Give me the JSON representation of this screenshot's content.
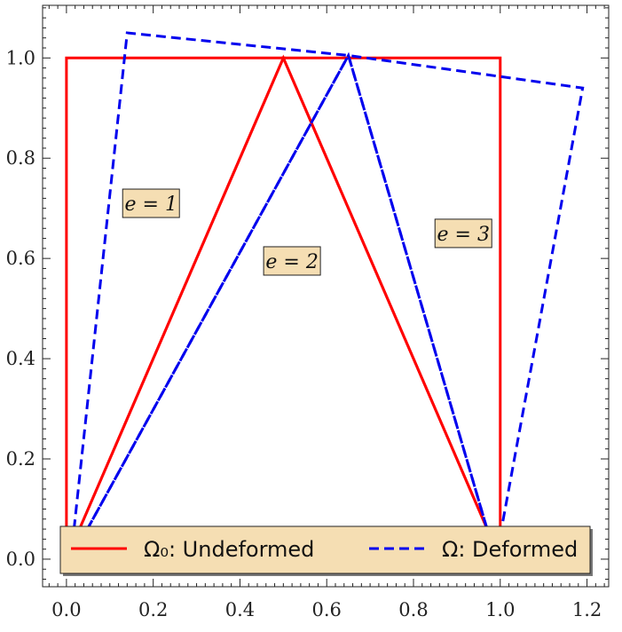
{
  "chart_data": {
    "type": "line",
    "title": "",
    "xlabel": "",
    "ylabel": "",
    "xlim": [
      -0.055,
      1.25
    ],
    "ylim": [
      -0.055,
      1.105
    ],
    "grid": false,
    "legend_placement": "bottom",
    "x_ticks": [
      "0.0",
      "0.2",
      "0.4",
      "0.6",
      "0.8",
      "1.0",
      "1.2"
    ],
    "y_ticks": [
      "0.0",
      "0.2",
      "0.4",
      "0.6",
      "0.8",
      "1.0"
    ],
    "series": [
      {
        "name": "Undeformed",
        "legend_label": "Ω₀: Undeformed",
        "color": "#ff0000",
        "style": "solid",
        "polygons": [
          [
            [
              0,
              0
            ],
            [
              0,
              1
            ],
            [
              0.5,
              1
            ],
            [
              0,
              0
            ]
          ],
          [
            [
              0,
              0
            ],
            [
              0.5,
              1
            ],
            [
              1,
              0
            ],
            [
              0,
              0
            ]
          ],
          [
            [
              1,
              0
            ],
            [
              0.5,
              1
            ],
            [
              1,
              1
            ],
            [
              1,
              0
            ]
          ]
        ]
      },
      {
        "name": "Deformed",
        "legend_label": "Ω: Deformed",
        "color": "#0000ee",
        "style": "dashed",
        "polygons": [
          [
            [
              0.01,
              0
            ],
            [
              0.14,
              1.05
            ],
            [
              0.65,
              1.005
            ],
            [
              0.01,
              0
            ]
          ],
          [
            [
              0.01,
              0
            ],
            [
              0.65,
              1.005
            ],
            [
              0.99,
              0
            ],
            [
              0.01,
              0
            ]
          ],
          [
            [
              0.99,
              0
            ],
            [
              0.65,
              1.005
            ],
            [
              1.19,
              0.94
            ],
            [
              0.99,
              0
            ]
          ]
        ]
      }
    ],
    "annotations": [
      {
        "text": "e = 1",
        "x": 0.195,
        "y": 0.71
      },
      {
        "text": "e = 2",
        "x": 0.52,
        "y": 0.595
      },
      {
        "text": "e = 3",
        "x": 0.915,
        "y": 0.65
      }
    ]
  }
}
